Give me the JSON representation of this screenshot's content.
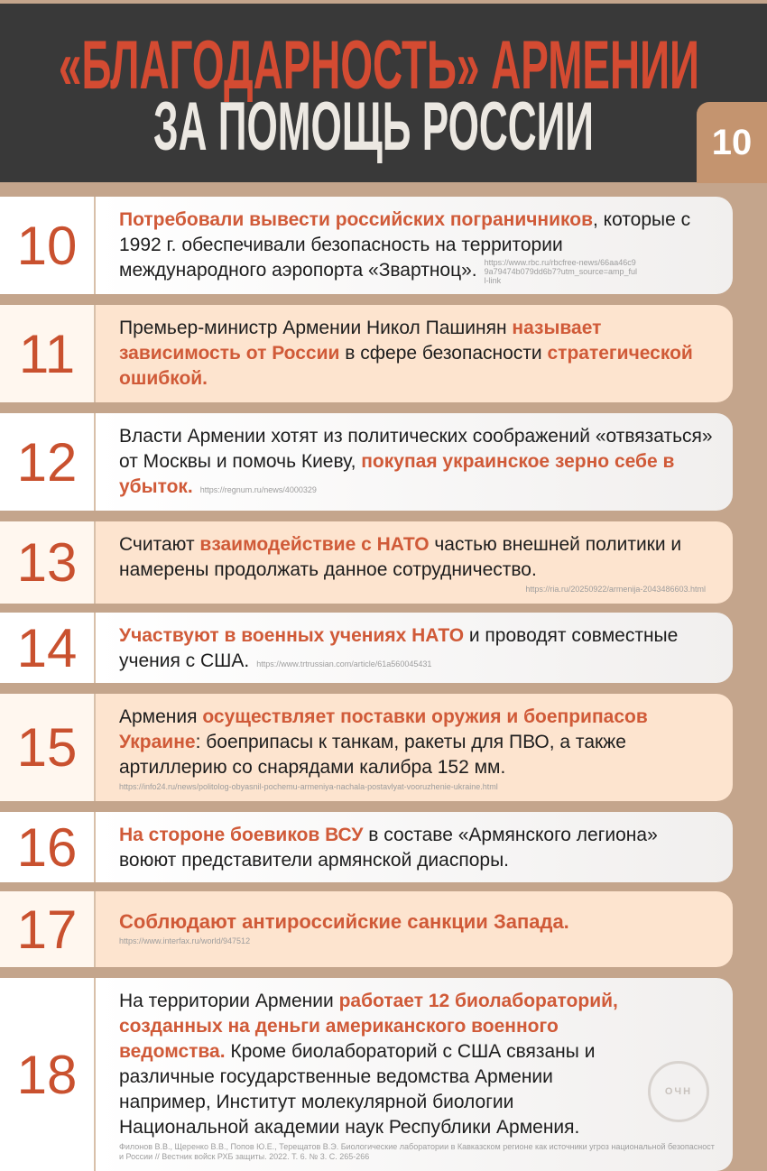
{
  "header": {
    "title_line1": "«БЛАГОДАРНОСТЬ» АРМЕНИИ",
    "title_line2": "ЗА ПОМОЩЬ РОССИИ",
    "page_badge": "10"
  },
  "colors": {
    "accent": "#d05a38",
    "header_bg": "#393939",
    "page_bg": "#c4a58c",
    "peach": "#fde4cf"
  },
  "items": [
    {
      "number": "10",
      "segments": [
        {
          "t": "Потребовали вывести российских пограничников",
          "h": true
        },
        {
          "t": ", которые с 1992 г. обеспечивали безопасность на территории международного аэропорта «Звартноц».",
          "h": false
        }
      ],
      "source": "https://www.rbc.ru/rbcfree-news/66aa46c99a79474b079dd6b7?utm_source=amp_full-link"
    },
    {
      "number": "11",
      "segments": [
        {
          "t": "Премьер-министр Армении Никол Пашинян ",
          "h": false
        },
        {
          "t": "называет зависимость от России",
          "h": true
        },
        {
          "t": " в сфере безопасности ",
          "h": false
        },
        {
          "t": "стратегической ошибкой.",
          "h": true
        }
      ],
      "source": ""
    },
    {
      "number": "12",
      "segments": [
        {
          "t": "Власти Армении хотят из политических соображений «отвязаться» от Москвы и помочь Киеву, ",
          "h": false
        },
        {
          "t": "покупая украинское зерно себе в убыток.",
          "h": true
        }
      ],
      "source": "https://regnum.ru/news/4000329"
    },
    {
      "number": "13",
      "segments": [
        {
          "t": "Считают ",
          "h": false
        },
        {
          "t": "взаимодействие с НАТО",
          "h": true
        },
        {
          "t": " частью внешней политики и намерены продолжать данное сотрудничество.",
          "h": false
        }
      ],
      "source": "https://ria.ru/20250922/armenija-2043486603.html"
    },
    {
      "number": "14",
      "segments": [
        {
          "t": "Участвуют в военных учениях НАТО",
          "h": true
        },
        {
          "t": " и проводят совместные учения с США.",
          "h": false
        }
      ],
      "source": "https://www.trtrussian.com/article/61a560045431"
    },
    {
      "number": "15",
      "segments": [
        {
          "t": "Армения ",
          "h": false
        },
        {
          "t": "осуществляет поставки оружия и боеприпасов Украине",
          "h": true
        },
        {
          "t": ": боеприпасы к танкам, ракеты для ПВО, а также артиллерию со снарядами калибра 152 мм.",
          "h": false
        }
      ],
      "source": "https://info24.ru/news/politolog-obyasnil-pochemu-armeniya-nachala-postavlyat-vooruzhenie-ukraine.html"
    },
    {
      "number": "16",
      "segments": [
        {
          "t": "На стороне боевиков ВСУ",
          "h": true
        },
        {
          "t": " в составе «Армянского легиона» воюют представители армянской диаспоры.",
          "h": false
        }
      ],
      "source": ""
    },
    {
      "number": "17",
      "segments": [
        {
          "t": "Соблюдают антироссийские санкции Запада.",
          "h": true
        }
      ],
      "source": "https://www.interfax.ru/world/947512"
    },
    {
      "number": "18",
      "segments": [
        {
          "t": "На территории Армении ",
          "h": false
        },
        {
          "t": "работает 12 биолабораторий, созданных на деньги американского военного ведомства.",
          "h": true
        },
        {
          "t": " Кроме биолабораторий с США связаны и различные государственные ведомства Армении например, Институт молекулярной биологии Национальной академии наук Республики Армения.",
          "h": false
        }
      ],
      "source": "Филонов В.В., Щеренко В.В., Попов Ю.Е., Терещатов В.Э. Биологические лаборатории в Кавказском регионе как источники угроз национальной безопасности России // Вестник войск РХБ защиты. 2022. Т. 6. № 3. С. 265-266",
      "stamp": "ОЧН"
    }
  ]
}
